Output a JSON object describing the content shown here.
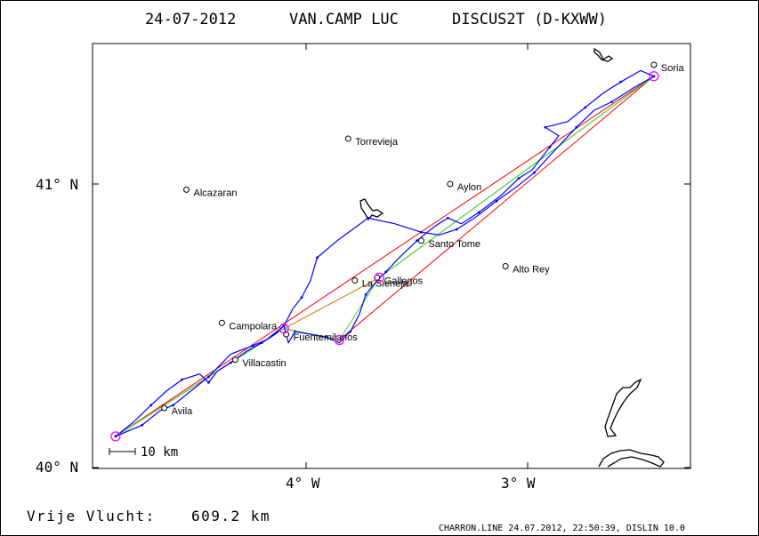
{
  "header": {
    "date": "24-07-2012",
    "pilot": "VAN.CAMP LUC",
    "glider": "DISCUS2T (D-KXWW)"
  },
  "axes": {
    "lat_labels": [
      "41° N",
      "40° N"
    ],
    "lon_labels": [
      "4° W",
      "3° W"
    ]
  },
  "places": [
    {
      "name": "Soria",
      "lon": -2.43,
      "lat": 41.42
    },
    {
      "name": "Torrevieja",
      "lon": -3.81,
      "lat": 41.16
    },
    {
      "name": "Aylon",
      "lon": -3.35,
      "lat": 41.0
    },
    {
      "name": "Alcazaran",
      "lon": -4.54,
      "lat": 40.98
    },
    {
      "name": "Santo Tome",
      "lon": -3.48,
      "lat": 40.8
    },
    {
      "name": "Alto Rey",
      "lon": -3.1,
      "lat": 40.71
    },
    {
      "name": "La Sieneja",
      "lon": -3.78,
      "lat": 40.66
    },
    {
      "name": "Gallegos",
      "lon": -3.68,
      "lat": 40.67
    },
    {
      "name": "Campolara",
      "lon": -4.38,
      "lat": 40.51
    },
    {
      "name": "Fuentemilanos",
      "lon": -4.09,
      "lat": 40.47
    },
    {
      "name": "Villacastin",
      "lon": -4.32,
      "lat": 40.38
    },
    {
      "name": "Avila",
      "lon": -4.64,
      "lat": 40.21
    }
  ],
  "turnpoints": [
    {
      "lon": -4.86,
      "lat": 40.11
    },
    {
      "lon": -4.1,
      "lat": 40.49
    },
    {
      "lon": -3.67,
      "lat": 40.67
    },
    {
      "lon": -3.85,
      "lat": 40.45
    },
    {
      "lon": -2.43,
      "lat": 41.38
    }
  ],
  "task_routes": {
    "red": [
      [
        -4.86,
        40.11
      ],
      [
        -2.43,
        41.38
      ],
      [
        -3.85,
        40.45
      ],
      [
        -4.1,
        40.49
      ],
      [
        -4.86,
        40.11
      ]
    ],
    "orange": [
      [
        -4.86,
        40.11
      ],
      [
        -4.1,
        40.49
      ],
      [
        -3.67,
        40.67
      ],
      [
        -2.43,
        41.38
      ]
    ],
    "green": [
      [
        -4.86,
        40.11
      ],
      [
        -4.1,
        40.49
      ],
      [
        -3.85,
        40.45
      ],
      [
        -3.67,
        40.67
      ],
      [
        -2.43,
        41.38
      ]
    ]
  },
  "flight_track": [
    [
      -4.86,
      40.11
    ],
    [
      -4.78,
      40.16
    ],
    [
      -4.7,
      40.22
    ],
    [
      -4.63,
      40.27
    ],
    [
      -4.56,
      40.31
    ],
    [
      -4.48,
      40.33
    ],
    [
      -4.44,
      40.3
    ],
    [
      -4.4,
      40.34
    ],
    [
      -4.34,
      40.37
    ],
    [
      -4.27,
      40.41
    ],
    [
      -4.2,
      40.44
    ],
    [
      -4.14,
      40.47
    ],
    [
      -4.1,
      40.5
    ],
    [
      -4.08,
      40.44
    ],
    [
      -4.05,
      40.48
    ],
    [
      -3.98,
      40.47
    ],
    [
      -3.91,
      40.46
    ],
    [
      -3.85,
      40.44
    ],
    [
      -3.8,
      40.48
    ],
    [
      -3.76,
      40.54
    ],
    [
      -3.73,
      40.61
    ],
    [
      -3.68,
      40.66
    ],
    [
      -3.64,
      40.69
    ],
    [
      -3.58,
      40.74
    ],
    [
      -3.5,
      40.8
    ],
    [
      -3.42,
      40.85
    ],
    [
      -3.36,
      40.88
    ],
    [
      -3.3,
      40.86
    ],
    [
      -3.22,
      40.9
    ],
    [
      -3.12,
      40.96
    ],
    [
      -3.04,
      41.02
    ],
    [
      -2.98,
      41.05
    ],
    [
      -2.9,
      41.13
    ],
    [
      -2.86,
      41.17
    ],
    [
      -2.92,
      41.2
    ],
    [
      -2.82,
      41.22
    ],
    [
      -2.74,
      41.27
    ],
    [
      -2.66,
      41.32
    ],
    [
      -2.58,
      41.36
    ],
    [
      -2.49,
      41.4
    ],
    [
      -2.43,
      41.38
    ],
    [
      -2.52,
      41.34
    ],
    [
      -2.62,
      41.29
    ],
    [
      -2.7,
      41.26
    ],
    [
      -2.78,
      41.2
    ],
    [
      -2.9,
      41.1
    ],
    [
      -2.97,
      41.04
    ],
    [
      -3.05,
      40.99
    ],
    [
      -3.14,
      40.94
    ],
    [
      -3.24,
      40.88
    ],
    [
      -3.32,
      40.84
    ],
    [
      -3.4,
      40.82
    ],
    [
      -3.48,
      40.83
    ],
    [
      -3.6,
      40.86
    ],
    [
      -3.72,
      40.88
    ],
    [
      -3.86,
      40.8
    ],
    [
      -3.95,
      40.74
    ],
    [
      -3.98,
      40.66
    ],
    [
      -4.02,
      40.6
    ],
    [
      -4.06,
      40.56
    ],
    [
      -4.1,
      40.5
    ],
    [
      -4.18,
      40.45
    ],
    [
      -4.24,
      40.43
    ],
    [
      -4.34,
      40.4
    ],
    [
      -4.44,
      40.32
    ],
    [
      -4.52,
      40.27
    ],
    [
      -4.6,
      40.22
    ],
    [
      -4.66,
      40.2
    ],
    [
      -4.74,
      40.15
    ],
    [
      -4.86,
      40.11
    ]
  ],
  "scale_bar_label": "10 km",
  "footer": {
    "distance_label": "Vrije Vlucht:",
    "distance_value": "609.2 km",
    "credit": "CHARRON.LINE 24.07.2012, 22:50:39, DISLIN 10.0"
  },
  "colors": {
    "track": "#0000ff",
    "route_red": "#ff0000",
    "route_orange": "#cc7700",
    "route_green": "#33dd33",
    "turnpoint": "#ff00ff",
    "reservoir": "#000000"
  }
}
